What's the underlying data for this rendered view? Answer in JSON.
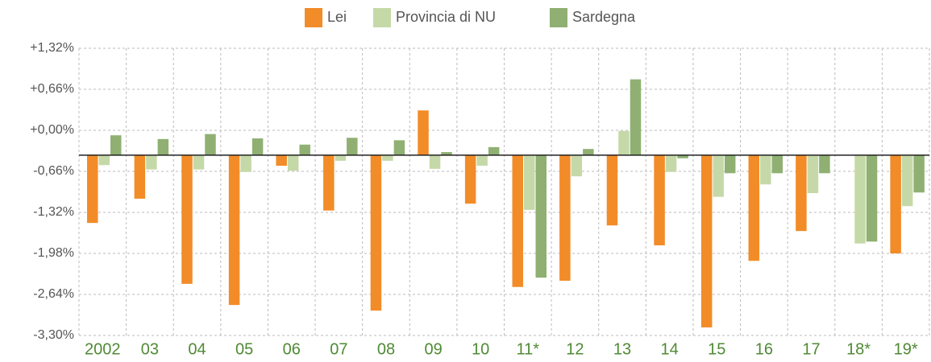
{
  "chart_data": {
    "type": "bar",
    "categories": [
      "2002",
      "03",
      "04",
      "05",
      "06",
      "07",
      "08",
      "09",
      "10",
      "11*",
      "12",
      "13",
      "14",
      "15",
      "16",
      "17",
      "18*",
      "19*"
    ],
    "series": [
      {
        "name": "Lei",
        "color": "#f28c28",
        "values": [
          -1.49,
          -1.1,
          -2.47,
          -2.81,
          -0.57,
          -1.29,
          -2.9,
          0.32,
          -1.18,
          -2.52,
          -2.42,
          -1.53,
          -1.85,
          -3.17,
          -2.1,
          -1.62,
          null,
          -1.98
        ]
      },
      {
        "name": "Provincia di NU",
        "color": "#c5d9a8",
        "values": [
          -0.56,
          -0.63,
          -0.63,
          -0.67,
          -0.65,
          -0.49,
          -0.49,
          -0.62,
          -0.57,
          -1.28,
          -0.74,
          -0.01,
          -0.67,
          -1.07,
          -0.87,
          -1.01,
          -1.82,
          -1.22
        ]
      },
      {
        "name": "Sardegna",
        "color": "#8fb072",
        "values": [
          -0.08,
          -0.14,
          -0.06,
          -0.13,
          -0.23,
          -0.12,
          -0.16,
          -0.35,
          -0.27,
          -2.37,
          -0.3,
          0.82,
          -0.45,
          -0.69,
          -0.69,
          -0.69,
          -1.79,
          -1.0
        ]
      }
    ],
    "ylim": [
      -3.3,
      1.32
    ],
    "yticks": [
      {
        "value": 1.32,
        "label": "+1,32%"
      },
      {
        "value": 0.66,
        "label": "+0,66%"
      },
      {
        "value": 0,
        "label": "+0,00%"
      },
      {
        "value": -0.66,
        "label": "-0,66%"
      },
      {
        "value": -1.32,
        "label": "-1,32%"
      },
      {
        "value": -1.98,
        "label": "-1,98%"
      },
      {
        "value": -2.64,
        "label": "-2,64%"
      },
      {
        "value": -3.3,
        "label": "-3,30%"
      }
    ],
    "baseline": -0.4,
    "grid": true,
    "legend": "top"
  }
}
